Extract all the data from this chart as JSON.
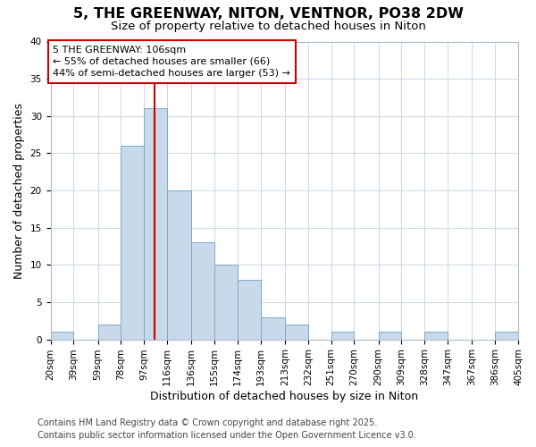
{
  "title1": "5, THE GREENWAY, NITON, VENTNOR, PO38 2DW",
  "title2": "Size of property relative to detached houses in Niton",
  "xlabel": "Distribution of detached houses by size in Niton",
  "ylabel": "Number of detached properties",
  "bin_edges": [
    20,
    39,
    59,
    78,
    97,
    116,
    136,
    155,
    174,
    193,
    213,
    232,
    251,
    270,
    290,
    309,
    328,
    347,
    367,
    386,
    405
  ],
  "counts": [
    1,
    0,
    2,
    26,
    31,
    20,
    13,
    10,
    8,
    3,
    2,
    0,
    1,
    0,
    1,
    0,
    1,
    0,
    0,
    1
  ],
  "bar_color": "#c8daea",
  "bar_edge_color": "#7aaac8",
  "vline_x": 106,
  "vline_color": "#cc0000",
  "annotation_line1": "5 THE GREENWAY: 106sqm",
  "annotation_line2": "← 55% of detached houses are smaller (66)",
  "annotation_line3": "44% of semi-detached houses are larger (53) →",
  "annotation_box_edge": "#cc0000",
  "ylim": [
    0,
    40
  ],
  "yticks": [
    0,
    5,
    10,
    15,
    20,
    25,
    30,
    35,
    40
  ],
  "footnote1": "Contains HM Land Registry data © Crown copyright and database right 2025.",
  "footnote2": "Contains public sector information licensed under the Open Government Licence v3.0.",
  "bg_color": "#ffffff",
  "plot_bg_color": "#ffffff",
  "grid_color": "#c8d8e8",
  "title1_fontsize": 11.5,
  "title2_fontsize": 9.5,
  "axis_label_fontsize": 9,
  "tick_fontsize": 7.5,
  "annotation_fontsize": 8,
  "footnote_fontsize": 7
}
